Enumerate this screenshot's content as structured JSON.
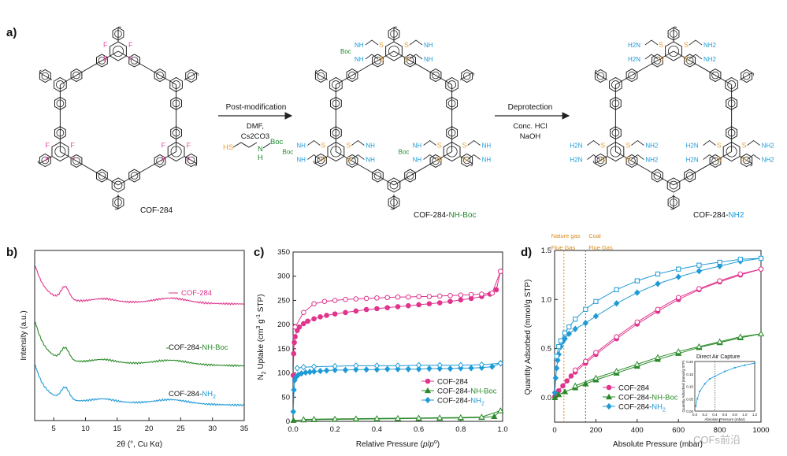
{
  "panel_a": {
    "label": "a)",
    "structures": [
      {
        "name": "COF-284",
        "suffix": ""
      },
      {
        "name": "COF-284-",
        "suffix": "NH-Boc"
      },
      {
        "name": "COF-284-",
        "suffix": "NH2"
      }
    ],
    "step1": {
      "title": "Post-modification",
      "reagent1": "DMF,",
      "reagent2": "Cs2CO3",
      "reagent_sh": "HS",
      "reagent_nh": "N",
      "reagent_h": "H",
      "reagent_boc": "Boc"
    },
    "step2": {
      "title": "Deprotection",
      "reagent1": "Conc. HCl",
      "reagent2": "NaOH"
    },
    "atom_F": "F",
    "atom_S": "S",
    "group_boc": "Boc",
    "group_nh": "NH",
    "group_h2n": "H2N",
    "group_nh2": "NH2",
    "colors": {
      "F": "#e64aa8",
      "S": "#e8a33a",
      "boc": "#1f8a2a",
      "amine": "#1c9bd8"
    }
  },
  "panel_b": {
    "label": "b)",
    "chart_data": {
      "type": "line",
      "xlabel": "2θ (°, Cu Kα)",
      "ylabel": "Intensity (a.u.)",
      "xlim": [
        2,
        35
      ],
      "xticks": [
        5,
        10,
        15,
        20,
        25,
        30,
        35
      ],
      "series": [
        {
          "name": "COF-284",
          "color": "#e0348e"
        },
        {
          "name": "COF-284-NH-Boc",
          "color": "#2a8a2a"
        },
        {
          "name": "COF-284-NH2",
          "color": "#1f9ad6"
        }
      ]
    }
  },
  "panel_c": {
    "label": "c)",
    "chart_data": {
      "type": "scatter",
      "xlabel": "Relative Pressure (p/p°)",
      "ylabel": "N2 Uptake (cm3 g-1 STP)",
      "xlim": [
        0,
        1.0
      ],
      "ylim": [
        0,
        350
      ],
      "xticks": [
        0.0,
        0.2,
        0.4,
        0.6,
        0.8,
        1.0
      ],
      "yticks": [
        0,
        50,
        100,
        150,
        200,
        250,
        300,
        350
      ],
      "legend": "lower-right",
      "series": [
        {
          "name": "COF-284",
          "color": "#e0348e",
          "marker": "circle",
          "adsorption": [
            [
              0.001,
              95
            ],
            [
              0.003,
              140
            ],
            [
              0.006,
              163
            ],
            [
              0.01,
              175
            ],
            [
              0.02,
              188
            ],
            [
              0.03,
              195
            ],
            [
              0.05,
              202
            ],
            [
              0.07,
              207
            ],
            [
              0.1,
              212
            ],
            [
              0.13,
              216
            ],
            [
              0.16,
              219
            ],
            [
              0.2,
              222
            ],
            [
              0.25,
              225
            ],
            [
              0.3,
              228
            ],
            [
              0.35,
              231
            ],
            [
              0.4,
              233
            ],
            [
              0.45,
              235
            ],
            [
              0.5,
              237
            ],
            [
              0.55,
              239
            ],
            [
              0.6,
              241
            ],
            [
              0.65,
              243
            ],
            [
              0.7,
              245
            ],
            [
              0.75,
              248
            ],
            [
              0.8,
              251
            ],
            [
              0.85,
              254
            ],
            [
              0.9,
              258
            ],
            [
              0.94,
              263
            ],
            [
              0.97,
              272
            ],
            [
              0.99,
              310
            ]
          ],
          "desorption": [
            [
              0.99,
              310
            ],
            [
              0.95,
              265
            ],
            [
              0.9,
              263
            ],
            [
              0.85,
              262
            ],
            [
              0.8,
              261
            ],
            [
              0.75,
              260
            ],
            [
              0.7,
              259
            ],
            [
              0.65,
              258
            ],
            [
              0.6,
              258
            ],
            [
              0.55,
              257
            ],
            [
              0.5,
              257
            ],
            [
              0.45,
              256
            ],
            [
              0.4,
              255
            ],
            [
              0.35,
              254
            ],
            [
              0.3,
              253
            ],
            [
              0.25,
              252
            ],
            [
              0.2,
              250
            ],
            [
              0.15,
              248
            ],
            [
              0.1,
              243
            ],
            [
              0.05,
              225
            ],
            [
              0.01,
              195
            ]
          ]
        },
        {
          "name": "COF-284-NH-Boc",
          "color": "#2a8a2a",
          "marker": "triangle",
          "adsorption": [
            [
              0.002,
              2
            ],
            [
              0.05,
              3
            ],
            [
              0.1,
              3.5
            ],
            [
              0.2,
              4
            ],
            [
              0.3,
              4.5
            ],
            [
              0.4,
              5
            ],
            [
              0.5,
              5.5
            ],
            [
              0.6,
              6
            ],
            [
              0.7,
              6.5
            ],
            [
              0.8,
              7
            ],
            [
              0.9,
              8
            ],
            [
              0.96,
              10
            ],
            [
              0.99,
              22
            ]
          ],
          "desorption": [
            [
              0.99,
              22
            ],
            [
              0.9,
              9
            ],
            [
              0.8,
              8
            ],
            [
              0.7,
              7.5
            ],
            [
              0.6,
              7
            ],
            [
              0.5,
              6.5
            ],
            [
              0.4,
              6
            ],
            [
              0.3,
              5.5
            ],
            [
              0.2,
              5
            ],
            [
              0.1,
              4.5
            ],
            [
              0.05,
              4
            ]
          ]
        },
        {
          "name": "COF-284-NH2",
          "color": "#1f9ad6",
          "marker": "diamond",
          "adsorption": [
            [
              0.001,
              20
            ],
            [
              0.004,
              65
            ],
            [
              0.008,
              85
            ],
            [
              0.015,
              92
            ],
            [
              0.025,
              96
            ],
            [
              0.04,
              99
            ],
            [
              0.06,
              101
            ],
            [
              0.08,
              102
            ],
            [
              0.1,
              103
            ],
            [
              0.13,
              104
            ],
            [
              0.16,
              105
            ],
            [
              0.2,
              106
            ],
            [
              0.25,
              106
            ],
            [
              0.3,
              107
            ],
            [
              0.35,
              107
            ],
            [
              0.4,
              107
            ],
            [
              0.45,
              108
            ],
            [
              0.5,
              108
            ],
            [
              0.55,
              108
            ],
            [
              0.6,
              108
            ],
            [
              0.65,
              109
            ],
            [
              0.7,
              109
            ],
            [
              0.75,
              109
            ],
            [
              0.8,
              110
            ],
            [
              0.85,
              110
            ],
            [
              0.9,
              111
            ],
            [
              0.95,
              113
            ],
            [
              0.99,
              120
            ]
          ],
          "desorption": [
            [
              0.99,
              120
            ],
            [
              0.9,
              117
            ],
            [
              0.8,
              116
            ],
            [
              0.7,
              116
            ],
            [
              0.6,
              116
            ],
            [
              0.5,
              115
            ],
            [
              0.4,
              115
            ],
            [
              0.3,
              115
            ],
            [
              0.2,
              114
            ],
            [
              0.1,
              113
            ],
            [
              0.05,
              112
            ],
            [
              0.02,
              110
            ]
          ]
        }
      ]
    }
  },
  "panel_d": {
    "label": "d)",
    "chart_data": {
      "type": "scatter",
      "xlabel": "Absolute Pressure (mbar)",
      "ylabel": "Quantity Adsorbed (mmol/g STP)",
      "xlim": [
        0,
        1000
      ],
      "ylim": [
        -0.25,
        1.5
      ],
      "xticks": [
        0,
        200,
        400,
        600,
        800,
        1000
      ],
      "yticks": [
        0.0,
        0.5,
        1.0,
        1.5
      ],
      "legend": "lower-center",
      "annotations": [
        {
          "text1": "Nature gas",
          "text2": "Flue Gas",
          "x": 45,
          "color": "#d98a1a"
        },
        {
          "text1": "Coal",
          "text2": "Flue Gas",
          "x": 150,
          "color": "#4a7a2a"
        }
      ],
      "series": [
        {
          "name": "COF-284",
          "color": "#e0348e",
          "marker": "circle",
          "adsorption": [
            [
              1,
              0.01
            ],
            [
              10,
              0.04
            ],
            [
              20,
              0.07
            ],
            [
              40,
              0.12
            ],
            [
              60,
              0.17
            ],
            [
              80,
              0.22
            ],
            [
              100,
              0.26
            ],
            [
              150,
              0.35
            ],
            [
              200,
              0.44
            ],
            [
              300,
              0.6
            ],
            [
              400,
              0.75
            ],
            [
              500,
              0.88
            ],
            [
              600,
              1.0
            ],
            [
              700,
              1.1
            ],
            [
              800,
              1.18
            ],
            [
              900,
              1.25
            ],
            [
              1000,
              1.31
            ]
          ],
          "desorption": [
            [
              1000,
              1.31
            ],
            [
              900,
              1.26
            ],
            [
              800,
              1.19
            ],
            [
              700,
              1.11
            ],
            [
              600,
              1.02
            ],
            [
              500,
              0.9
            ],
            [
              400,
              0.77
            ],
            [
              300,
              0.62
            ],
            [
              200,
              0.46
            ],
            [
              150,
              0.37
            ],
            [
              100,
              0.28
            ]
          ]
        },
        {
          "name": "COF-284-NH-Boc",
          "color": "#2a8a2a",
          "marker": "triangle",
          "adsorption": [
            [
              1,
              0.0
            ],
            [
              20,
              0.03
            ],
            [
              50,
              0.06
            ],
            [
              100,
              0.1
            ],
            [
              150,
              0.14
            ],
            [
              200,
              0.18
            ],
            [
              300,
              0.25
            ],
            [
              400,
              0.32
            ],
            [
              500,
              0.39
            ],
            [
              600,
              0.45
            ],
            [
              700,
              0.51
            ],
            [
              800,
              0.56
            ],
            [
              900,
              0.61
            ],
            [
              1000,
              0.65
            ]
          ],
          "desorption": [
            [
              1000,
              0.65
            ],
            [
              900,
              0.62
            ],
            [
              800,
              0.57
            ],
            [
              700,
              0.52
            ],
            [
              600,
              0.47
            ],
            [
              500,
              0.41
            ],
            [
              400,
              0.34
            ],
            [
              300,
              0.27
            ],
            [
              200,
              0.2
            ],
            [
              100,
              0.12
            ]
          ]
        },
        {
          "name": "COF-284-NH2",
          "color": "#1f9ad6",
          "marker": "diamond",
          "adsorption": [
            [
              1,
              0.05
            ],
            [
              5,
              0.2
            ],
            [
              10,
              0.3
            ],
            [
              15,
              0.38
            ],
            [
              20,
              0.44
            ],
            [
              30,
              0.52
            ],
            [
              40,
              0.57
            ],
            [
              50,
              0.6
            ],
            [
              70,
              0.65
            ],
            [
              100,
              0.7
            ],
            [
              150,
              0.76
            ],
            [
              200,
              0.83
            ],
            [
              300,
              0.96
            ],
            [
              400,
              1.07
            ],
            [
              500,
              1.16
            ],
            [
              600,
              1.23
            ],
            [
              700,
              1.29
            ],
            [
              800,
              1.34
            ],
            [
              900,
              1.39
            ],
            [
              1000,
              1.42
            ]
          ],
          "desorption": [
            [
              1000,
              1.42
            ],
            [
              900,
              1.41
            ],
            [
              800,
              1.38
            ],
            [
              700,
              1.35
            ],
            [
              600,
              1.31
            ],
            [
              500,
              1.26
            ],
            [
              400,
              1.19
            ],
            [
              300,
              1.1
            ],
            [
              200,
              0.98
            ],
            [
              150,
              0.9
            ],
            [
              100,
              0.8
            ],
            [
              70,
              0.72
            ],
            [
              50,
              0.66
            ],
            [
              30,
              0.58
            ],
            [
              20,
              0.52
            ],
            [
              10,
              0.42
            ]
          ]
        }
      ],
      "inset": {
        "title": "Direct Air Capture",
        "xlabel": "Absolute Pressure (mbar)",
        "ylabel": "Quantity Adsorbed (mmol/g STP)",
        "xlim": [
          0,
          1.2
        ],
        "ylim": [
          0,
          0.2
        ],
        "yticks": [
          0.0,
          0.05,
          0.1,
          0.15,
          0.2
        ],
        "xticks": [
          0.0,
          0.2,
          0.4,
          0.6,
          0.8,
          1.0,
          1.2
        ],
        "points": [
          [
            0.02,
            0.02
          ],
          [
            0.05,
            0.05
          ],
          [
            0.1,
            0.08
          ],
          [
            0.2,
            0.11
          ],
          [
            0.3,
            0.13
          ],
          [
            0.4,
            0.14
          ],
          [
            0.6,
            0.16
          ],
          [
            0.8,
            0.175
          ],
          [
            1.0,
            0.185
          ],
          [
            1.2,
            0.193
          ]
        ]
      }
    }
  },
  "watermark": "COFs前沿"
}
